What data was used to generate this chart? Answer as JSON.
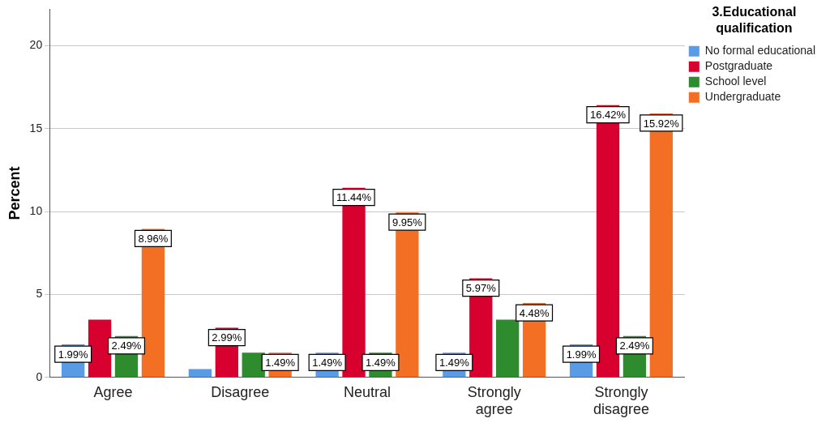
{
  "chart_data": {
    "type": "bar",
    "ylabel": "Percent",
    "legend_title": "3.Educational qualification",
    "categories": [
      "Agree",
      "Disagree",
      "Neutral",
      "Strongly agree",
      "Strongly disagree"
    ],
    "series": [
      {
        "name": "No formal educational",
        "color": "#5a9be6",
        "values": [
          1.99,
          0.5,
          1.49,
          1.49,
          1.99
        ],
        "value_labels": [
          "1.99%",
          null,
          "1.49%",
          "1.49%",
          "1.99%"
        ]
      },
      {
        "name": "Postgraduate",
        "color": "#d7002f",
        "values": [
          3.48,
          2.99,
          11.44,
          5.97,
          16.42
        ],
        "value_labels": [
          null,
          "2.99%",
          "11.44%",
          "5.97%",
          "16.42%"
        ]
      },
      {
        "name": "School level",
        "color": "#2e8b2e",
        "values": [
          2.49,
          1.49,
          1.49,
          3.48,
          2.49
        ],
        "value_labels": [
          "2.49%",
          null,
          "1.49%",
          null,
          "2.49%"
        ]
      },
      {
        "name": "Undergraduate",
        "color": "#f26f24",
        "values": [
          8.96,
          1.49,
          9.95,
          4.48,
          15.92
        ],
        "value_labels": [
          "8.96%",
          "1.49%",
          "9.95%",
          "4.48%",
          "15.92%"
        ]
      }
    ],
    "ylim": [
      0,
      22.2
    ],
    "yticks": [
      0,
      5,
      10,
      15,
      20
    ],
    "grid": "y",
    "legend": "top right"
  }
}
